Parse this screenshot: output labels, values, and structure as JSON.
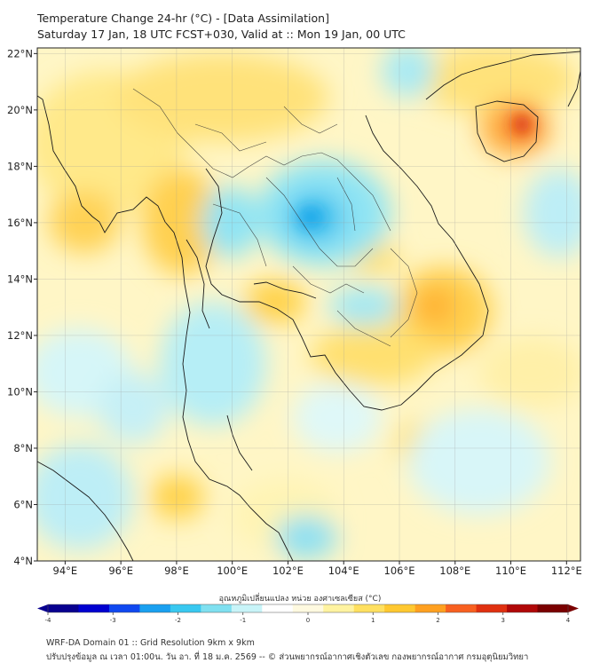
{
  "title": {
    "line1": "Temperature Change 24-hr (°C) - [Data Assimilation]",
    "line2": "Saturday 17 Jan, 18 UTC FCST+030, Valid at :: Mon 19 Jan, 00 UTC"
  },
  "map": {
    "lat_labels": [
      "22°N",
      "20°N",
      "18°N",
      "16°N",
      "14°N",
      "12°N",
      "10°N",
      "8°N",
      "6°N",
      "4°N"
    ],
    "lon_labels": [
      "94°E",
      "96°E",
      "98°E",
      "100°E",
      "102°E",
      "104°E",
      "106°E",
      "108°E",
      "110°E",
      "112°E"
    ],
    "lon_range": [
      93,
      112.5
    ],
    "lat_range": [
      4,
      22.2
    ]
  },
  "colorbar": {
    "label": "อุณหภูมิเปลี่ยนแปลง หน่วย องศาเซลเซียส (°C)",
    "ticks": [
      "-4",
      "-3",
      "-2",
      "-1",
      "0",
      "1",
      "2",
      "3",
      "4"
    ],
    "colors": [
      "#08008f",
      "#0000d0",
      "#1048f0",
      "#1aa0f0",
      "#38c8f0",
      "#7fe0f0",
      "#c8f4f8",
      "#ffffff",
      "#fffae0",
      "#fff3a0",
      "#ffe060",
      "#ffc830",
      "#ffa020",
      "#f86020",
      "#e03010",
      "#b00808",
      "#7a0000"
    ]
  },
  "footer": {
    "line1": "WRF-DA Domain 01 :: Grid Resolution 9km x 9km",
    "line2": "ปรับปรุงข้อมูล ณ เวลา 01:00น. วัน อา. ที่ 18 ม.ค. 2569 -- © ส่วนพยากรณ์อากาศเชิงตัวเลข กองพยากรณ์อากาศ กรมอุตุนิยมวิทยา"
  }
}
